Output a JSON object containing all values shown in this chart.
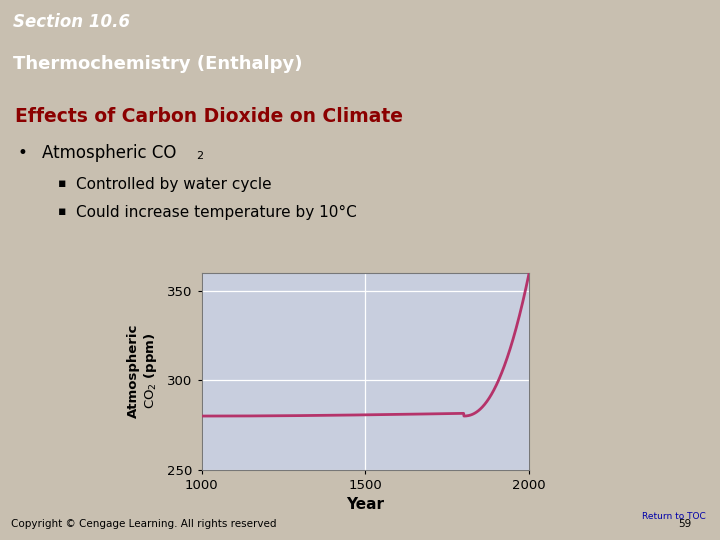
{
  "section_label": "Section 10.6",
  "section_bg": "#6B0000",
  "header_text": "Thermochemistry (Enthalpy)",
  "header_bg": "#7A8C30",
  "slide_bg": "#C8BFB0",
  "title_text": "Effects of Carbon Dioxide on Climate",
  "title_color": "#8B0000",
  "bullet1_text": "Atmospheric CO",
  "bullet1_sub": "2",
  "sub1": "Controlled by water cycle",
  "sub2": "Could increase temperature by 10°C",
  "graph_bg": "#C8CEDE",
  "graph_line_color": "#B5336A",
  "graph_ylabel_line1": "Atmospheric",
  "graph_ylabel_line2": "CO₂ (ppm)",
  "graph_xlabel": "Year",
  "xlim": [
    1000,
    2000
  ],
  "ylim": [
    250,
    360
  ],
  "yticks": [
    250,
    300,
    350
  ],
  "xticks": [
    1000,
    1500,
    2000
  ],
  "footer_bg": "#9A8E82",
  "footer_text": "Copyright © Cengage Learning. All rights reserved",
  "footer_page": "59",
  "toc_text": "Return to TOC",
  "toc_color": "#0000AA"
}
